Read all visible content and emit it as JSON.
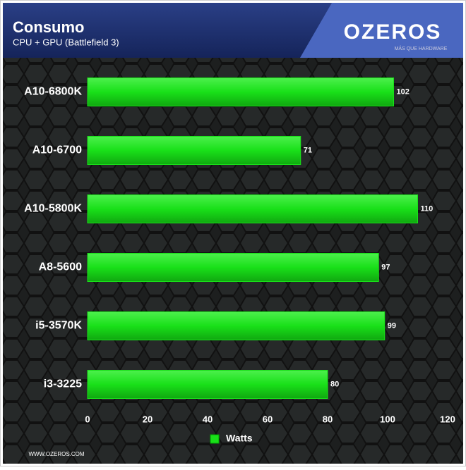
{
  "chart_data": {
    "type": "bar",
    "orientation": "horizontal",
    "title": "Consumo",
    "subtitle": "CPU + GPU (Battlefield 3)",
    "categories": [
      "A10-6800K",
      "A10-6700",
      "A10-5800K",
      "A8-5600",
      "i5-3570K",
      "i3-3225"
    ],
    "series": [
      {
        "name": "Watts",
        "color": "#19e019",
        "values": [
          102,
          71,
          110,
          97,
          99,
          80
        ]
      }
    ],
    "xlim": [
      0,
      120
    ],
    "xticks": [
      0,
      20,
      40,
      60,
      80,
      100,
      120
    ],
    "grid": false,
    "legend": "bottom"
  },
  "brand": "OZEROS",
  "brand_tagline": "MÁS QUE HARDWARE",
  "website": "WWW.OZEROS.COM"
}
